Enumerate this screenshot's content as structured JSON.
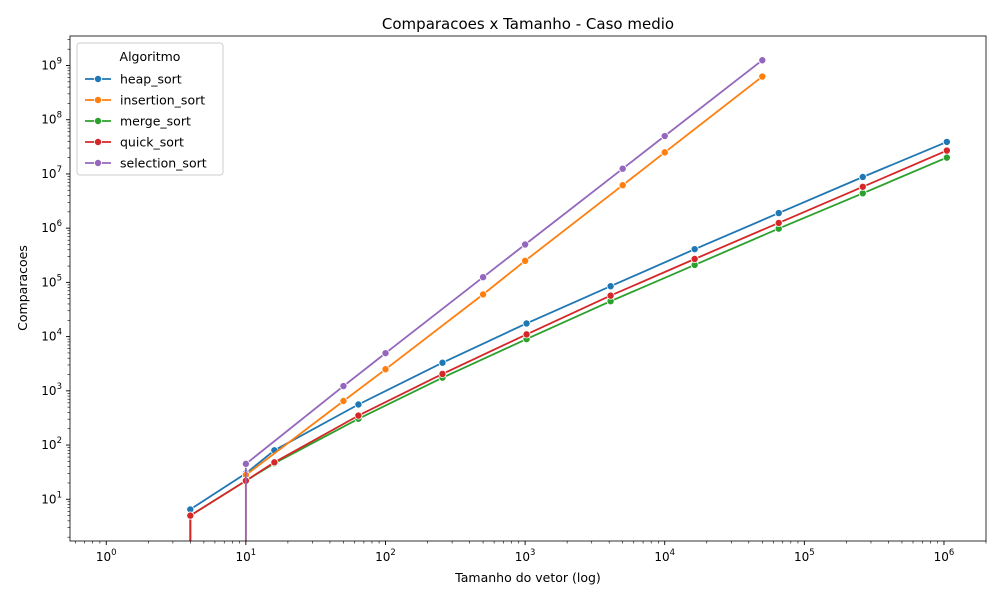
{
  "chart_data": {
    "type": "line",
    "title": "Comparacoes x Tamanho - Caso medio",
    "xlabel": "Tamanho do vetor (log)",
    "ylabel": "Comparacoes",
    "xscale": "log",
    "yscale": "log",
    "xlim": [
      0.55,
      2000000
    ],
    "ylim": [
      1.7,
      3500000000
    ],
    "x_ticks": [
      {
        "base": "10",
        "exp": "0",
        "value": 1
      },
      {
        "base": "10",
        "exp": "1",
        "value": 10
      },
      {
        "base": "10",
        "exp": "2",
        "value": 100
      },
      {
        "base": "10",
        "exp": "3",
        "value": 1000
      },
      {
        "base": "10",
        "exp": "4",
        "value": 10000
      },
      {
        "base": "10",
        "exp": "5",
        "value": 100000
      },
      {
        "base": "10",
        "exp": "6",
        "value": 1000000
      }
    ],
    "y_ticks": [
      {
        "base": "10",
        "exp": "1",
        "value": 10
      },
      {
        "base": "10",
        "exp": "2",
        "value": 100
      },
      {
        "base": "10",
        "exp": "3",
        "value": 1000
      },
      {
        "base": "10",
        "exp": "4",
        "value": 10000
      },
      {
        "base": "10",
        "exp": "5",
        "value": 100000
      },
      {
        "base": "10",
        "exp": "6",
        "value": 1000000
      },
      {
        "base": "10",
        "exp": "7",
        "value": 10000000
      },
      {
        "base": "10",
        "exp": "8",
        "value": 100000000
      },
      {
        "base": "10",
        "exp": "9",
        "value": 1000000000
      }
    ],
    "grid": false,
    "legend": {
      "title": "Algoritmo",
      "position": "top-left"
    },
    "series": [
      {
        "name": "heap_sort",
        "color": "#1f77b4",
        "x": [
          4,
          10,
          16,
          64,
          256,
          1024,
          4096,
          16384,
          65536,
          262144,
          1048576
        ],
        "y": [
          6.5,
          30,
          80,
          560,
          3300,
          17500,
          85000,
          410000,
          1900000,
          8800000,
          39000000
        ]
      },
      {
        "name": "insertion_sort",
        "color": "#ff7f0e",
        "x": [
          10,
          50,
          100,
          500,
          1000,
          5000,
          10000,
          50000
        ],
        "y": [
          28,
          650,
          2500,
          60000,
          250000,
          6200000,
          25000000,
          625000000
        ]
      },
      {
        "name": "merge_sort",
        "color": "#2ca02c",
        "x": [
          4,
          10,
          16,
          64,
          256,
          1024,
          4096,
          16384,
          65536,
          262144,
          1048576
        ],
        "y": [
          5,
          22,
          46,
          305,
          1750,
          9000,
          45000,
          210000,
          980000,
          4400000,
          20000000
        ]
      },
      {
        "name": "quick_sort",
        "color": "#d62728",
        "x": [
          4,
          10,
          16,
          64,
          256,
          1024,
          4096,
          16384,
          65536,
          262144,
          1048576
        ],
        "y": [
          5,
          22,
          48,
          350,
          2050,
          11000,
          57000,
          270000,
          1250000,
          5800000,
          27000000
        ]
      },
      {
        "name": "selection_sort",
        "color": "#9467bd",
        "x": [
          10,
          50,
          100,
          500,
          1000,
          5000,
          10000,
          50000
        ],
        "y": [
          45,
          1225,
          4950,
          124750,
          499500,
          12500000,
          50000000,
          1250000000
        ]
      }
    ]
  }
}
